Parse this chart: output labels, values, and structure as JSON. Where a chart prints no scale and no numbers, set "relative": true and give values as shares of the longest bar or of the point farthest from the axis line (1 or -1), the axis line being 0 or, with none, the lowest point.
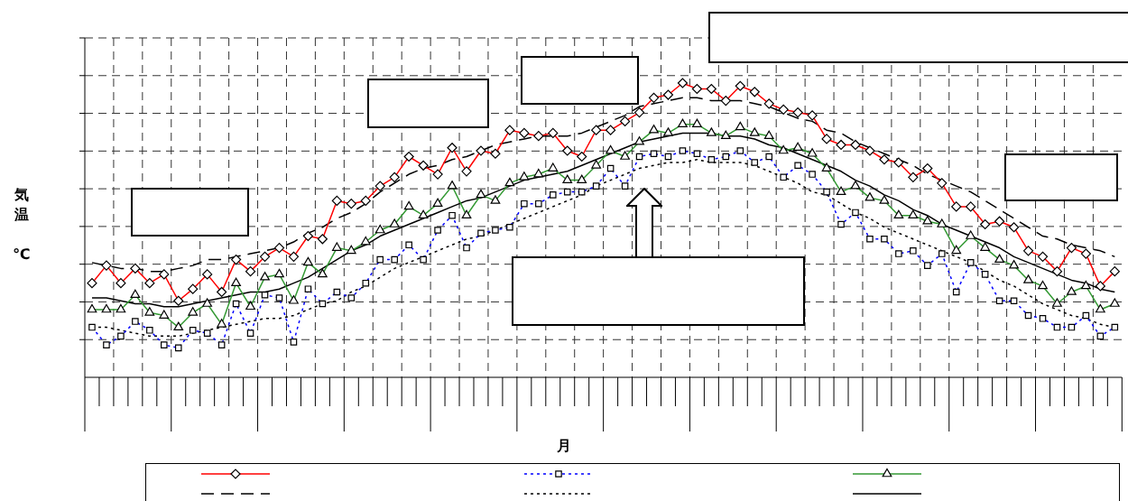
{
  "chart_data": {
    "type": "line",
    "xlabel": "月",
    "ylabel": "気温 ℃",
    "relative": true,
    "grid": true,
    "categories": [
      null,
      null,
      null,
      null,
      null,
      null,
      null,
      null,
      null,
      null,
      null,
      null,
      null,
      null,
      null,
      null,
      null,
      null,
      null,
      null,
      null,
      null,
      null,
      null,
      null,
      null,
      null,
      null,
      null,
      null,
      null,
      null,
      null,
      null,
      null,
      null,
      null,
      null,
      null,
      null,
      null,
      null,
      null,
      null,
      null,
      null,
      null,
      null,
      null,
      null,
      null,
      null,
      null,
      null,
      null,
      null,
      null,
      null,
      null,
      null,
      null,
      null,
      null,
      null,
      null,
      null,
      null,
      null,
      null,
      null,
      null,
      null
    ],
    "series": [
      {
        "color": "#ff0000",
        "marker": "diamond",
        "line_style": "solid",
        "values": [
          0.32,
          0.38,
          0.32,
          0.37,
          0.32,
          0.35,
          0.26,
          0.3,
          0.35,
          0.29,
          0.4,
          0.36,
          0.41,
          0.44,
          0.41,
          0.48,
          0.47,
          0.6,
          0.59,
          0.6,
          0.65,
          0.68,
          0.75,
          0.72,
          0.69,
          0.78,
          0.7,
          0.77,
          0.76,
          0.84,
          0.83,
          0.82,
          0.83,
          0.77,
          0.75,
          0.84,
          0.84,
          0.87,
          0.9,
          0.95,
          0.96,
          1,
          0.98,
          0.98,
          0.94,
          0.99,
          0.97,
          0.93,
          0.91,
          0.9,
          0.89,
          0.81,
          0.79,
          0.79,
          0.77,
          0.74,
          0.73,
          0.68,
          0.71,
          0.66,
          0.58,
          0.58,
          0.52,
          0.53,
          0.51,
          0.43,
          0.41,
          0.36,
          0.44,
          0.42,
          0.31,
          0.36
        ]
      },
      {
        "color": "#0000ff",
        "marker": "square",
        "line_style": "dotted",
        "values": [
          0.17,
          0.11,
          0.14,
          0.19,
          0.16,
          0.11,
          0.1,
          0.16,
          0.15,
          0.11,
          0.25,
          0.15,
          0.28,
          0.27,
          0.12,
          0.3,
          0.25,
          0.29,
          0.27,
          0.32,
          0.4,
          0.4,
          0.45,
          0.4,
          0.5,
          0.55,
          0.44,
          0.49,
          0.5,
          0.51,
          0.59,
          0.59,
          0.62,
          0.63,
          0.63,
          0.65,
          0.71,
          0.65,
          0.75,
          0.76,
          0.75,
          0.77,
          0.76,
          0.74,
          0.75,
          0.77,
          0.73,
          0.75,
          0.68,
          0.72,
          0.69,
          0.63,
          0.52,
          0.56,
          0.47,
          0.47,
          0.42,
          0.43,
          0.38,
          0.42,
          0.29,
          0.39,
          0.35,
          0.26,
          0.26,
          0.21,
          0.2,
          0.17,
          0.17,
          0.21,
          0.14,
          0.17
        ]
      },
      {
        "color": "#339933",
        "marker": "triangle",
        "line_style": "solid",
        "values": [
          0.23,
          0.23,
          0.23,
          0.28,
          0.22,
          0.21,
          0.17,
          0.22,
          0.25,
          0.18,
          0.32,
          0.24,
          0.34,
          0.35,
          0.26,
          0.39,
          0.35,
          0.44,
          0.43,
          0.46,
          0.5,
          0.52,
          0.58,
          0.55,
          0.59,
          0.65,
          0.55,
          0.62,
          0.6,
          0.66,
          0.68,
          0.69,
          0.71,
          0.67,
          0.67,
          0.72,
          0.77,
          0.75,
          0.8,
          0.84,
          0.83,
          0.86,
          0.86,
          0.83,
          0.82,
          0.85,
          0.83,
          0.82,
          0.77,
          0.78,
          0.76,
          0.71,
          0.63,
          0.65,
          0.61,
          0.6,
          0.55,
          0.55,
          0.53,
          0.52,
          0.43,
          0.48,
          0.44,
          0.4,
          0.38,
          0.33,
          0.31,
          0.25,
          0.29,
          0.31,
          0.23,
          0.25
        ]
      },
      {
        "color": "#000000",
        "marker": "none",
        "line_style": "dashed",
        "values": [
          0.39,
          0.38,
          0.37,
          0.37,
          0.36,
          0.36,
          0.37,
          0.38,
          0.4,
          0.4,
          0.41,
          0.42,
          0.43,
          0.44,
          0.46,
          0.49,
          0.51,
          0.54,
          0.56,
          0.59,
          0.63,
          0.66,
          0.69,
          0.71,
          0.72,
          0.74,
          0.75,
          0.77,
          0.79,
          0.8,
          0.81,
          0.82,
          0.82,
          0.82,
          0.83,
          0.85,
          0.87,
          0.89,
          0.92,
          0.93,
          0.94,
          0.95,
          0.95,
          0.94,
          0.94,
          0.94,
          0.93,
          0.92,
          0.9,
          0.88,
          0.87,
          0.84,
          0.83,
          0.8,
          0.78,
          0.76,
          0.74,
          0.72,
          0.69,
          0.67,
          0.65,
          0.63,
          0.6,
          0.57,
          0.54,
          0.51,
          0.48,
          0.47,
          0.45,
          0.44,
          0.43,
          0.41
        ]
      },
      {
        "color": "#000000",
        "marker": "none",
        "line_style": "dotted",
        "values": [
          0.17,
          0.17,
          0.16,
          0.15,
          0.14,
          0.14,
          0.14,
          0.15,
          0.16,
          0.17,
          0.18,
          0.19,
          0.2,
          0.2,
          0.21,
          0.23,
          0.25,
          0.26,
          0.29,
          0.31,
          0.34,
          0.37,
          0.39,
          0.41,
          0.43,
          0.45,
          0.47,
          0.48,
          0.5,
          0.52,
          0.54,
          0.56,
          0.58,
          0.6,
          0.62,
          0.65,
          0.67,
          0.69,
          0.71,
          0.72,
          0.73,
          0.73,
          0.74,
          0.73,
          0.73,
          0.73,
          0.72,
          0.7,
          0.68,
          0.66,
          0.63,
          0.62,
          0.59,
          0.56,
          0.54,
          0.51,
          0.49,
          0.47,
          0.45,
          0.43,
          0.41,
          0.39,
          0.36,
          0.33,
          0.31,
          0.28,
          0.25,
          0.23,
          0.21,
          0.2,
          0.18,
          0.17
        ]
      },
      {
        "color": "#000000",
        "marker": "none",
        "line_style": "solid",
        "values": [
          0.27,
          0.27,
          0.26,
          0.25,
          0.25,
          0.24,
          0.24,
          0.25,
          0.26,
          0.27,
          0.28,
          0.29,
          0.29,
          0.3,
          0.32,
          0.34,
          0.37,
          0.4,
          0.43,
          0.45,
          0.48,
          0.5,
          0.52,
          0.54,
          0.56,
          0.58,
          0.6,
          0.61,
          0.63,
          0.65,
          0.67,
          0.68,
          0.69,
          0.7,
          0.72,
          0.74,
          0.76,
          0.78,
          0.8,
          0.81,
          0.82,
          0.83,
          0.83,
          0.83,
          0.82,
          0.82,
          0.81,
          0.79,
          0.78,
          0.76,
          0.74,
          0.72,
          0.7,
          0.67,
          0.65,
          0.62,
          0.6,
          0.57,
          0.55,
          0.52,
          0.5,
          0.48,
          0.46,
          0.44,
          0.41,
          0.39,
          0.37,
          0.35,
          0.33,
          0.32,
          0.3,
          0.29
        ]
      }
    ]
  }
}
